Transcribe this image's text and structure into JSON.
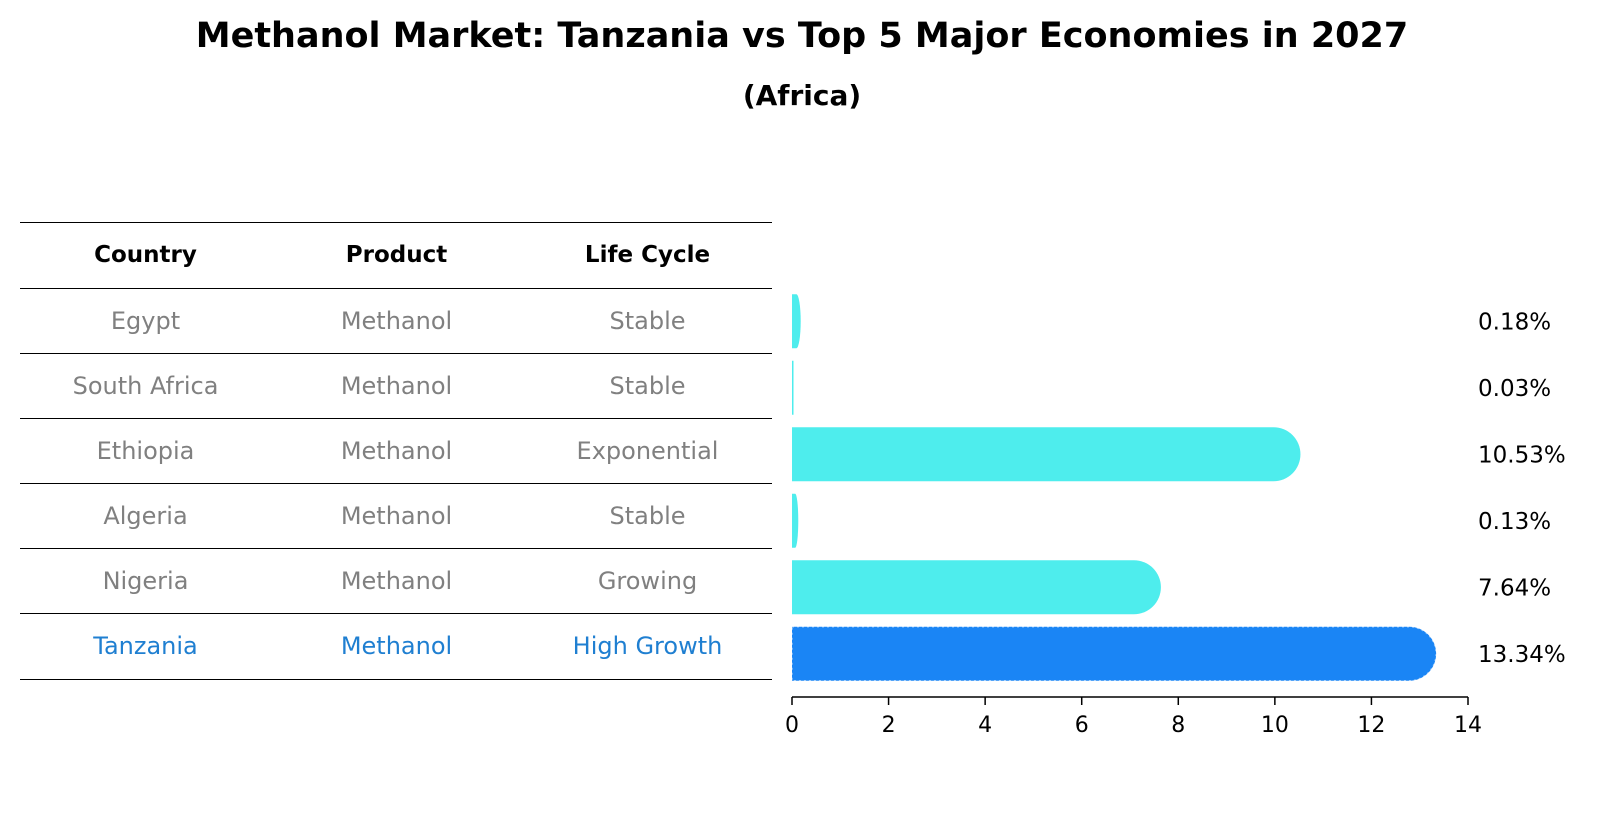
{
  "header": {
    "title": "Methanol Market: Tanzania vs Top 5 Major Economies in 2027",
    "subtitle": "(Africa)"
  },
  "table": {
    "columns": [
      "Country",
      "Product",
      "Life Cycle"
    ],
    "rows": [
      {
        "country": "Egypt",
        "product": "Methanol",
        "life_cycle": "Stable"
      },
      {
        "country": "South Africa",
        "product": "Methanol",
        "life_cycle": "Stable"
      },
      {
        "country": "Ethiopia",
        "product": "Methanol",
        "life_cycle": "Exponential"
      },
      {
        "country": "Algeria",
        "product": "Methanol",
        "life_cycle": "Stable"
      },
      {
        "country": "Nigeria",
        "product": "Methanol",
        "life_cycle": "Growing"
      },
      {
        "country": "Tanzania",
        "product": "Methanol",
        "life_cycle": "High Growth"
      }
    ]
  },
  "colors": {
    "bar": "#4eeded",
    "highlight_bar": "#1a85f5",
    "highlight_text": "#1f7fd1",
    "muted_text": "#808080"
  },
  "chart_data": {
    "type": "bar",
    "orientation": "horizontal",
    "categories": [
      "Egypt",
      "South Africa",
      "Ethiopia",
      "Algeria",
      "Nigeria",
      "Tanzania"
    ],
    "values": [
      0.18,
      0.03,
      10.53,
      0.13,
      7.64,
      13.34
    ],
    "value_labels": [
      "0.18%",
      "0.03%",
      "10.53%",
      "0.13%",
      "7.64%",
      "13.34%"
    ],
    "highlight": "Tanzania",
    "xlim": [
      0,
      14
    ],
    "xticks": [
      0,
      2,
      4,
      6,
      8,
      10,
      12,
      14
    ],
    "xlabel": "",
    "ylabel": "",
    "grid": false
  }
}
